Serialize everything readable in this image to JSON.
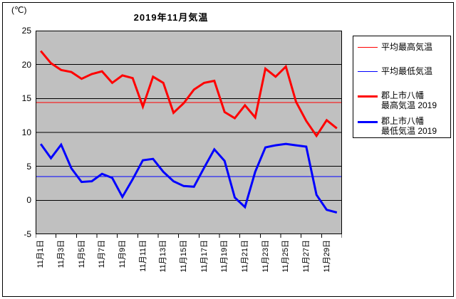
{
  "chart_data": {
    "type": "line",
    "title": "2019年11月気温",
    "y_axis_unit": "(℃)",
    "ylim": [
      -5,
      25
    ],
    "y_ticks": [
      25,
      20,
      15,
      10,
      5,
      0,
      -5
    ],
    "x_days": 30,
    "x_tick_labels": [
      "11月1日",
      "11月3日",
      "11月5日",
      "11月7日",
      "11月9日",
      "11月11日",
      "11月13日",
      "11月15日",
      "11月17日",
      "11月19日",
      "11月21日",
      "11月23日",
      "11月25日",
      "11月27日",
      "11月29日"
    ],
    "plot_background": "#c0c0c0",
    "grid": true,
    "legend_position": "right",
    "reference_lines": [
      {
        "label": "平均最高気温",
        "value": 14.4,
        "color": "#ff0000",
        "stroke_width": 1
      },
      {
        "label": "平均最低気温",
        "value": 3.5,
        "color": "#0000ff",
        "stroke_width": 1
      }
    ],
    "series": [
      {
        "name": "郡上市八幡 最高気温 2019",
        "color": "#ff0000",
        "stroke_width": 3,
        "values": [
          22.0,
          20.2,
          19.2,
          18.9,
          17.9,
          18.6,
          19.0,
          17.3,
          18.4,
          18.0,
          13.8,
          18.2,
          17.3,
          12.9,
          14.3,
          16.3,
          17.3,
          17.6,
          13.0,
          12.1,
          14.0,
          12.2,
          19.4,
          18.2,
          19.7,
          14.5,
          11.7,
          9.5,
          11.8,
          10.6
        ]
      },
      {
        "name": "郡上市八幡 最低気温 2019",
        "color": "#0000ff",
        "stroke_width": 3,
        "values": [
          8.3,
          6.2,
          8.2,
          4.7,
          2.7,
          2.8,
          3.9,
          3.3,
          0.5,
          3.1,
          5.9,
          6.1,
          4.2,
          2.8,
          2.1,
          2.0,
          4.8,
          7.5,
          5.8,
          0.4,
          -1.0,
          4.2,
          7.8,
          8.1,
          8.3,
          8.1,
          7.9,
          0.8,
          -1.4,
          -1.8
        ]
      }
    ],
    "legend": [
      {
        "lines": [
          "平均最高気温"
        ],
        "color": "#ff0000",
        "thick": false
      },
      {
        "lines": [
          "平均最低気温"
        ],
        "color": "#0000ff",
        "thick": false
      },
      {
        "lines": [
          "郡上市八幡",
          "最高気温 2019"
        ],
        "color": "#ff0000",
        "thick": true
      },
      {
        "lines": [
          "郡上市八幡",
          "最低気温 2019"
        ],
        "color": "#0000ff",
        "thick": true
      }
    ]
  }
}
